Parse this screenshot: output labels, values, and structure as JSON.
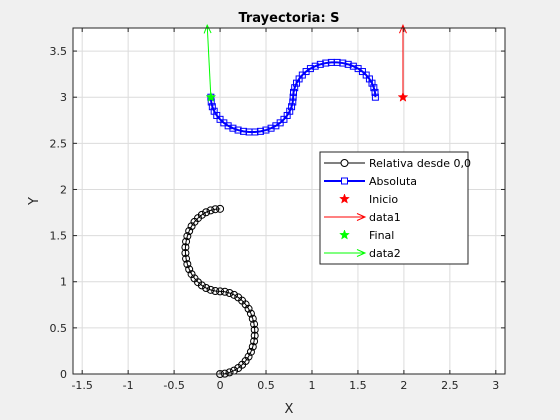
{
  "chart_data": {
    "type": "line",
    "title": "Trayectoria: S",
    "xlabel": "X",
    "ylabel": "Y",
    "xlim": [
      -1.6,
      3.1
    ],
    "ylim": [
      0,
      3.75
    ],
    "xticks": [
      -1.5,
      -1,
      -0.5,
      0,
      0.5,
      1,
      1.5,
      2,
      2.5,
      3
    ],
    "xtick_labels": [
      "-1.5",
      "-1",
      "-0.5",
      "0",
      "0.5",
      "1",
      "1.5",
      "2",
      "2.5",
      "3"
    ],
    "yticks": [
      0,
      0.5,
      1,
      1.5,
      2,
      2.5,
      3,
      3.5
    ],
    "ytick_labels": [
      "0",
      "0.5",
      "1",
      "1.5",
      "2",
      "2.5",
      "3",
      "3.5"
    ],
    "grid": true,
    "legend_position": "center-right",
    "series": [
      {
        "name": "Relativa desde 0,0",
        "color": "#000000",
        "marker": "circle",
        "x": [
          0,
          0.052,
          0.103,
          0.152,
          0.198,
          0.24,
          0.278,
          0.31,
          0.336,
          0.356,
          0.37,
          0.377,
          0.377,
          0.37,
          0.356,
          0.336,
          0.31,
          0.278,
          0.24,
          0.198,
          0.152,
          0.103,
          0.052,
          0,
          -0.052,
          -0.103,
          -0.152,
          -0.198,
          -0.24,
          -0.278,
          -0.31,
          -0.336,
          -0.356,
          -0.37,
          -0.377,
          -0.377,
          -0.37,
          -0.356,
          -0.336,
          -0.31,
          -0.278,
          -0.24,
          -0.198,
          -0.152,
          -0.103,
          -0.052,
          0
        ],
        "y": [
          0,
          0.004,
          0.017,
          0.037,
          0.065,
          0.1,
          0.141,
          0.188,
          0.24,
          0.296,
          0.355,
          0.416,
          0.479,
          0.54,
          0.599,
          0.655,
          0.707,
          0.754,
          0.795,
          0.83,
          0.858,
          0.878,
          0.891,
          0.895,
          0.899,
          0.912,
          0.932,
          0.96,
          0.995,
          1.036,
          1.083,
          1.135,
          1.191,
          1.25,
          1.311,
          1.374,
          1.435,
          1.494,
          1.55,
          1.602,
          1.649,
          1.69,
          1.725,
          1.753,
          1.773,
          1.786,
          1.79
        ]
      },
      {
        "name": "Absoluta",
        "color": "#0000ff",
        "marker": "square",
        "x": [
          -0.1,
          -0.096,
          -0.084,
          -0.064,
          -0.036,
          0,
          0.041,
          0.088,
          0.14,
          0.196,
          0.255,
          0.316,
          0.379,
          0.44,
          0.499,
          0.555,
          0.607,
          0.654,
          0.695,
          0.73,
          0.758,
          0.778,
          0.791,
          0.795,
          0.799,
          0.812,
          0.832,
          0.86,
          0.895,
          0.936,
          0.983,
          1.035,
          1.091,
          1.15,
          1.211,
          1.274,
          1.335,
          1.394,
          1.45,
          1.502,
          1.549,
          1.59,
          1.625,
          1.653,
          1.673,
          1.686,
          1.69
        ],
        "y": [
          3,
          2.948,
          2.897,
          2.848,
          2.802,
          2.76,
          2.722,
          2.69,
          2.664,
          2.644,
          2.63,
          2.623,
          2.623,
          2.63,
          2.644,
          2.664,
          2.69,
          2.722,
          2.76,
          2.802,
          2.848,
          2.897,
          2.948,
          3,
          3.052,
          3.103,
          3.152,
          3.198,
          3.24,
          3.278,
          3.31,
          3.336,
          3.356,
          3.37,
          3.377,
          3.377,
          3.37,
          3.356,
          3.336,
          3.31,
          3.278,
          3.24,
          3.198,
          3.152,
          3.103,
          3.052,
          3
        ]
      }
    ],
    "points": [
      {
        "name": "Inicio",
        "color": "#ff0000",
        "marker": "star",
        "x": 1.99,
        "y": 3.0
      },
      {
        "name": "Final",
        "color": "#00ff00",
        "marker": "star",
        "x": -0.1,
        "y": 3.0
      }
    ],
    "arrows": [
      {
        "name": "data1",
        "color": "#ff0000",
        "x": 1.99,
        "y": 3.0,
        "dx": 0,
        "dy": 0.78
      },
      {
        "name": "data2",
        "color": "#00ff00",
        "x": -0.1,
        "y": 3.0,
        "dx": -0.04,
        "dy": 0.78
      }
    ]
  }
}
